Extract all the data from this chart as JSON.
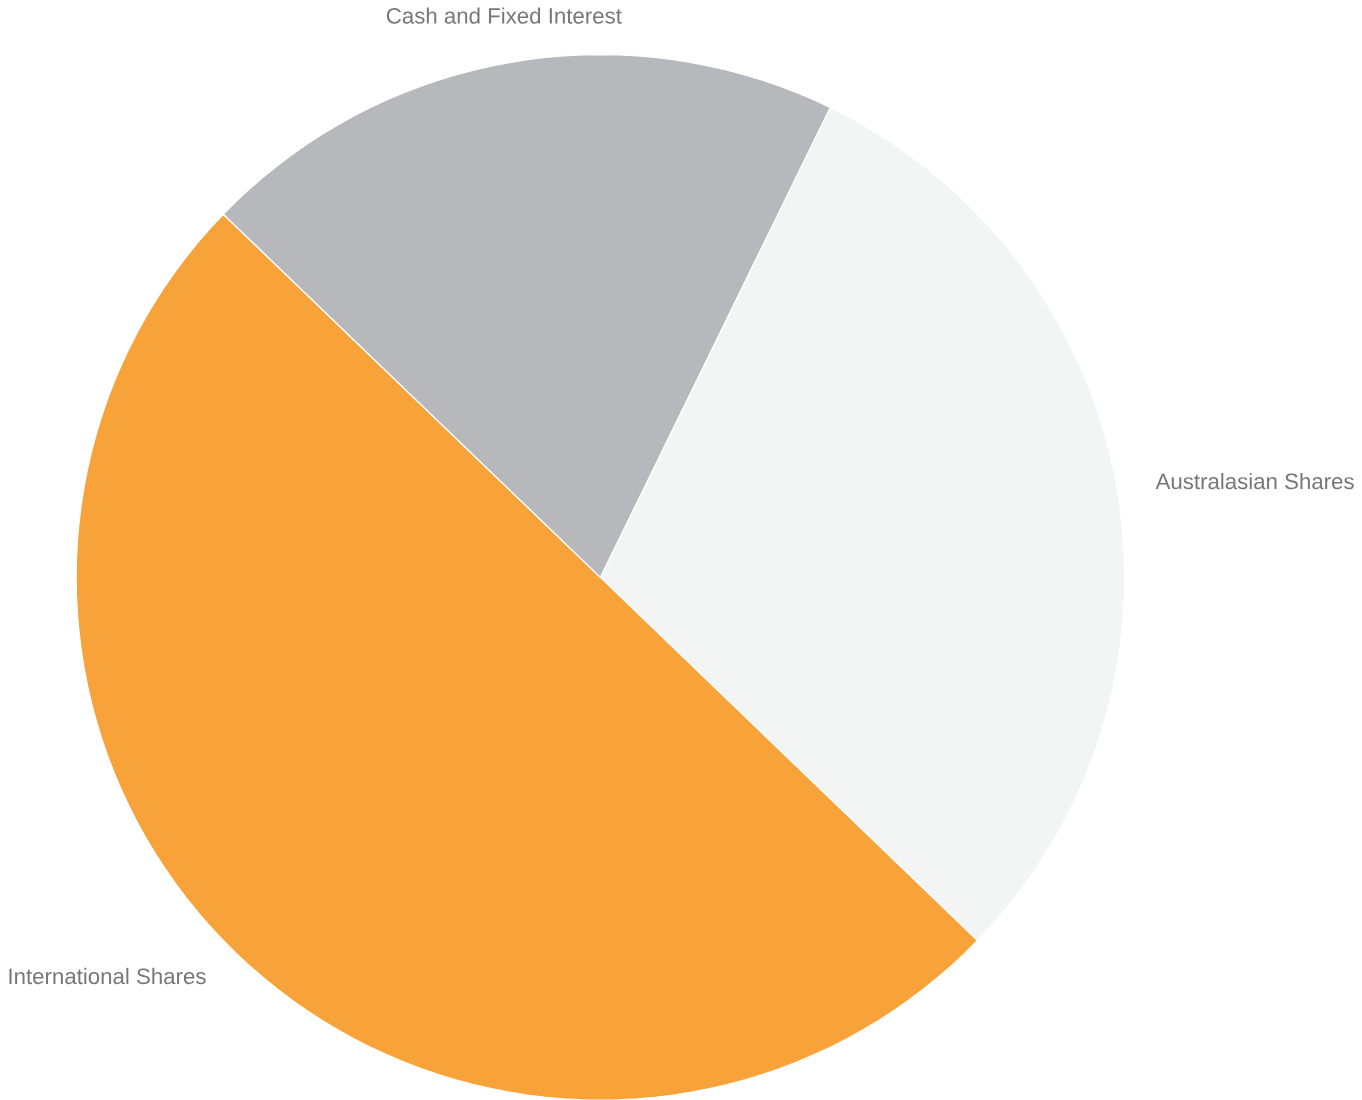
{
  "chart_data": {
    "type": "pie",
    "categories": [
      "Australasian Shares",
      "International Shares",
      "Cash and Fixed Interest"
    ],
    "values": [
      30,
      50,
      20
    ],
    "colors": [
      "#f3f4f4",
      "#f8a33a",
      "#b7b8bb"
    ]
  }
}
